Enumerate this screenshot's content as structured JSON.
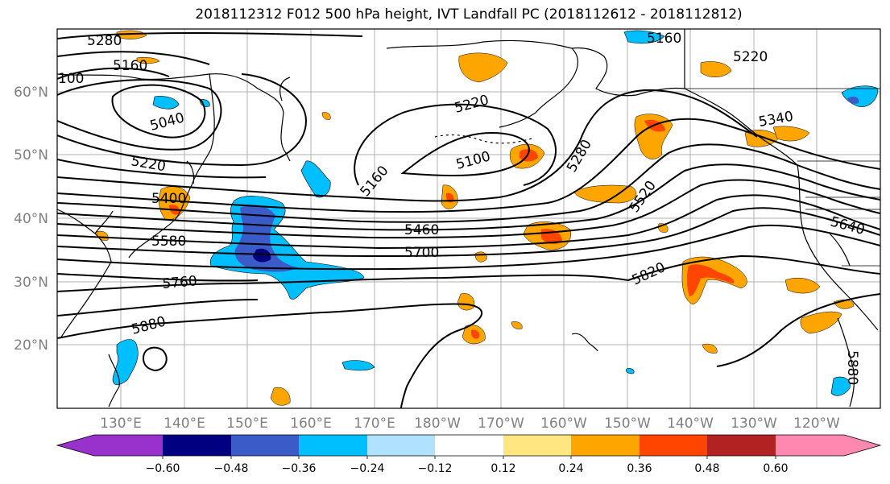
{
  "title": "2018112312 F012 500 hPa height, IVT Landfall PC (2018112612 - 2018112812)",
  "lat_labels": [
    "60°N",
    "50°N",
    "40°N",
    "30°N",
    "20°N"
  ],
  "lon_labels": [
    "130°E",
    "140°E",
    "150°E",
    "160°E",
    "170°E",
    "180°W",
    "170°W",
    "160°W",
    "150°W",
    "140°W",
    "130°W",
    "120°W"
  ],
  "contour_labels": [
    "5280",
    "5160",
    "100",
    "5220",
    "5040",
    "5220",
    "5400",
    "5580",
    "5760",
    "5880",
    "5160",
    "5100",
    "5160",
    "5460",
    "5700",
    "5280",
    "5520",
    "5820",
    "5220",
    "5340",
    "5640",
    "5880"
  ],
  "colorbar": {
    "ticks": [
      "−0.60",
      "−0.48",
      "−0.36",
      "−0.24",
      "−0.12",
      "0.12",
      "0.24",
      "0.36",
      "0.48",
      "0.60"
    ],
    "colors": [
      "#9932cc",
      "#000080",
      "#3a5bc8",
      "#00bfff",
      "#b0e2ff",
      "#ffffff",
      "#ffe680",
      "#ffa500",
      "#ff4500",
      "#b22222",
      "#ff88b0"
    ]
  }
}
